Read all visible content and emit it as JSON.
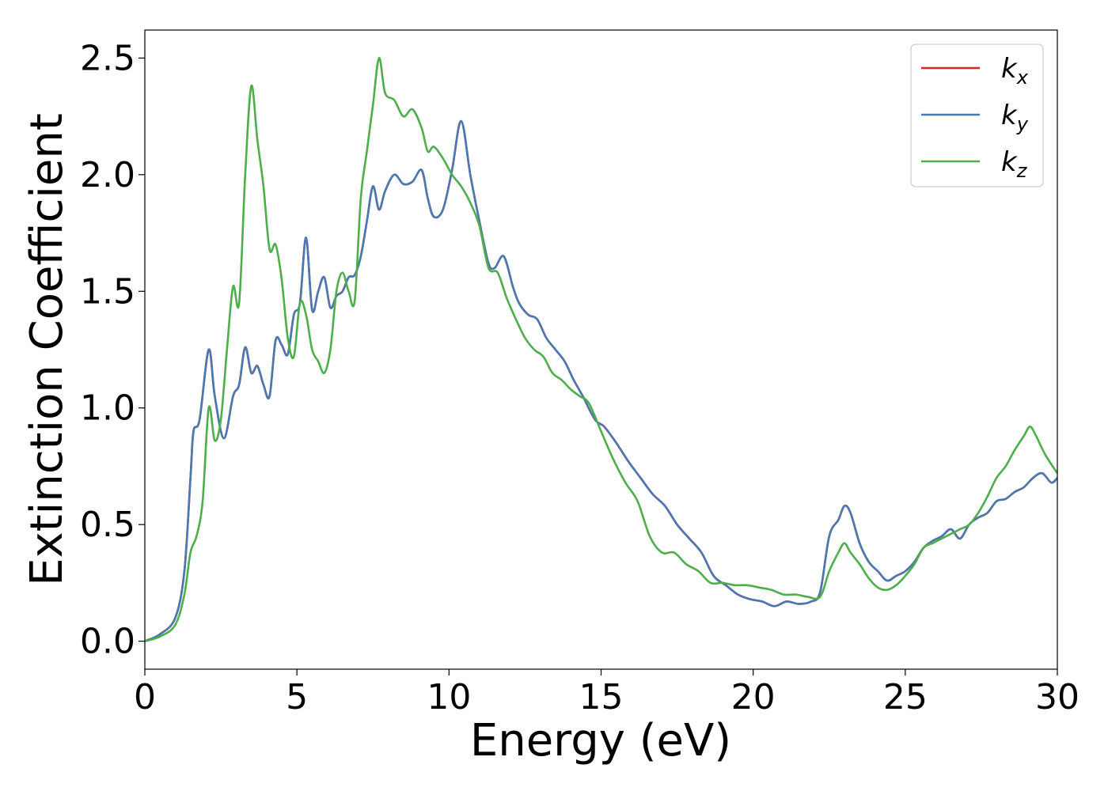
{
  "chart_data": {
    "type": "line",
    "title": "",
    "xlabel": "Energy (eV)",
    "ylabel": "Extinction Coefficient",
    "xlim": [
      0,
      30
    ],
    "ylim": [
      -0.12,
      2.62
    ],
    "xticks": [
      0,
      5,
      10,
      15,
      20,
      25,
      30
    ],
    "xtick_labels": [
      "0",
      "5",
      "10",
      "15",
      "20",
      "25",
      "30"
    ],
    "yticks": [
      0.0,
      0.5,
      1.0,
      1.5,
      2.0,
      2.5
    ],
    "ytick_labels": [
      "0.0",
      "0.5",
      "1.0",
      "1.5",
      "2.0",
      "2.5"
    ],
    "grid": false,
    "legend_position": "top-right",
    "series": [
      {
        "name": "k",
        "sub": "x",
        "color": "#d62728",
        "x": [
          0,
          0.5,
          1.0,
          1.3,
          1.5,
          1.6,
          1.8,
          2.1,
          2.3,
          2.6,
          2.9,
          3.1,
          3.3,
          3.5,
          3.7,
          3.9,
          4.1,
          4.3,
          4.5,
          4.7,
          4.9,
          5.1,
          5.3,
          5.5,
          5.7,
          5.9,
          6.1,
          6.3,
          6.5,
          6.7,
          6.9,
          7.1,
          7.3,
          7.5,
          7.7,
          7.9,
          8.2,
          8.5,
          8.8,
          9.1,
          9.3,
          9.5,
          9.8,
          10.1,
          10.4,
          10.7,
          11.0,
          11.3,
          11.5,
          11.8,
          12.1,
          12.3,
          12.6,
          12.9,
          13.2,
          13.5,
          13.8,
          14.1,
          14.4,
          14.8,
          15.1,
          15.5,
          15.9,
          16.3,
          16.7,
          17.1,
          17.5,
          17.9,
          18.3,
          18.7,
          19.1,
          19.5,
          19.9,
          20.3,
          20.7,
          21.1,
          21.5,
          21.9,
          22.2,
          22.5,
          22.8,
          23.0,
          23.2,
          23.5,
          23.8,
          24.1,
          24.4,
          24.7,
          25.0,
          25.3,
          25.6,
          25.9,
          26.2,
          26.5,
          26.8,
          27.1,
          27.4,
          27.7,
          28.0,
          28.3,
          28.6,
          28.9,
          29.2,
          29.5,
          29.8,
          30.0
        ],
        "y": [
          0,
          0.03,
          0.1,
          0.3,
          0.7,
          0.9,
          0.95,
          1.25,
          1.05,
          0.87,
          1.05,
          1.1,
          1.26,
          1.15,
          1.18,
          1.1,
          1.05,
          1.29,
          1.27,
          1.23,
          1.4,
          1.45,
          1.73,
          1.42,
          1.5,
          1.56,
          1.43,
          1.48,
          1.5,
          1.56,
          1.57,
          1.65,
          1.8,
          1.95,
          1.85,
          1.93,
          2.0,
          1.96,
          1.97,
          2.02,
          1.9,
          1.82,
          1.85,
          2.02,
          2.23,
          2.0,
          1.8,
          1.62,
          1.6,
          1.65,
          1.52,
          1.45,
          1.4,
          1.38,
          1.3,
          1.25,
          1.2,
          1.12,
          1.05,
          0.95,
          0.92,
          0.85,
          0.77,
          0.7,
          0.63,
          0.58,
          0.5,
          0.44,
          0.38,
          0.28,
          0.24,
          0.2,
          0.18,
          0.17,
          0.15,
          0.17,
          0.16,
          0.17,
          0.21,
          0.45,
          0.52,
          0.58,
          0.55,
          0.42,
          0.34,
          0.3,
          0.26,
          0.28,
          0.3,
          0.34,
          0.4,
          0.43,
          0.45,
          0.48,
          0.44,
          0.5,
          0.53,
          0.55,
          0.6,
          0.61,
          0.64,
          0.66,
          0.7,
          0.72,
          0.68,
          0.7
        ]
      },
      {
        "name": "k",
        "sub": "y",
        "color": "#4a78b0",
        "x": [
          0,
          0.5,
          1.0,
          1.3,
          1.5,
          1.6,
          1.8,
          2.1,
          2.3,
          2.6,
          2.9,
          3.1,
          3.3,
          3.5,
          3.7,
          3.9,
          4.1,
          4.3,
          4.5,
          4.7,
          4.9,
          5.1,
          5.3,
          5.5,
          5.7,
          5.9,
          6.1,
          6.3,
          6.5,
          6.7,
          6.9,
          7.1,
          7.3,
          7.5,
          7.7,
          7.9,
          8.2,
          8.5,
          8.8,
          9.1,
          9.3,
          9.5,
          9.8,
          10.1,
          10.4,
          10.7,
          11.0,
          11.3,
          11.5,
          11.8,
          12.1,
          12.3,
          12.6,
          12.9,
          13.2,
          13.5,
          13.8,
          14.1,
          14.4,
          14.8,
          15.1,
          15.5,
          15.9,
          16.3,
          16.7,
          17.1,
          17.5,
          17.9,
          18.3,
          18.7,
          19.1,
          19.5,
          19.9,
          20.3,
          20.7,
          21.1,
          21.5,
          21.9,
          22.2,
          22.5,
          22.8,
          23.0,
          23.2,
          23.5,
          23.8,
          24.1,
          24.4,
          24.7,
          25.0,
          25.3,
          25.6,
          25.9,
          26.2,
          26.5,
          26.8,
          27.1,
          27.4,
          27.7,
          28.0,
          28.3,
          28.6,
          28.9,
          29.2,
          29.5,
          29.8,
          30.0
        ],
        "y": [
          0,
          0.03,
          0.1,
          0.3,
          0.7,
          0.9,
          0.95,
          1.25,
          1.05,
          0.87,
          1.05,
          1.1,
          1.26,
          1.15,
          1.18,
          1.1,
          1.05,
          1.29,
          1.27,
          1.23,
          1.4,
          1.45,
          1.73,
          1.42,
          1.5,
          1.56,
          1.43,
          1.48,
          1.5,
          1.56,
          1.57,
          1.65,
          1.8,
          1.95,
          1.85,
          1.93,
          2.0,
          1.96,
          1.97,
          2.02,
          1.9,
          1.82,
          1.85,
          2.02,
          2.23,
          2.0,
          1.8,
          1.62,
          1.6,
          1.65,
          1.52,
          1.45,
          1.4,
          1.38,
          1.3,
          1.25,
          1.2,
          1.12,
          1.05,
          0.95,
          0.92,
          0.85,
          0.77,
          0.7,
          0.63,
          0.58,
          0.5,
          0.44,
          0.38,
          0.28,
          0.24,
          0.2,
          0.18,
          0.17,
          0.15,
          0.17,
          0.16,
          0.17,
          0.21,
          0.45,
          0.52,
          0.58,
          0.55,
          0.42,
          0.34,
          0.3,
          0.26,
          0.28,
          0.3,
          0.34,
          0.4,
          0.43,
          0.45,
          0.48,
          0.44,
          0.5,
          0.53,
          0.55,
          0.6,
          0.61,
          0.64,
          0.66,
          0.7,
          0.72,
          0.68,
          0.7
        ]
      },
      {
        "name": "k",
        "sub": "z",
        "color": "#4daf4a",
        "x": [
          0,
          0.5,
          1.0,
          1.3,
          1.5,
          1.7,
          1.9,
          2.1,
          2.3,
          2.5,
          2.7,
          2.9,
          3.1,
          3.3,
          3.5,
          3.7,
          3.9,
          4.1,
          4.3,
          4.5,
          4.7,
          4.9,
          5.1,
          5.3,
          5.5,
          5.7,
          5.9,
          6.1,
          6.3,
          6.5,
          6.7,
          6.9,
          7.1,
          7.3,
          7.5,
          7.7,
          7.9,
          8.2,
          8.5,
          8.8,
          9.1,
          9.3,
          9.5,
          9.8,
          10.1,
          10.4,
          10.7,
          11.0,
          11.3,
          11.6,
          11.9,
          12.2,
          12.5,
          12.8,
          13.1,
          13.4,
          13.7,
          14.0,
          14.3,
          14.6,
          15.0,
          15.4,
          15.8,
          16.2,
          16.6,
          17.0,
          17.4,
          17.8,
          18.2,
          18.6,
          19.0,
          19.4,
          19.8,
          20.2,
          20.6,
          21.0,
          21.4,
          21.8,
          22.2,
          22.5,
          22.8,
          23.0,
          23.2,
          23.5,
          23.8,
          24.1,
          24.4,
          24.7,
          25.0,
          25.3,
          25.6,
          25.9,
          26.2,
          26.5,
          26.8,
          27.1,
          27.4,
          27.7,
          28.0,
          28.3,
          28.6,
          28.9,
          29.1,
          29.3,
          29.6,
          30.0
        ],
        "y": [
          0,
          0.02,
          0.07,
          0.2,
          0.38,
          0.45,
          0.6,
          1.0,
          0.86,
          0.95,
          1.25,
          1.52,
          1.45,
          2.0,
          2.38,
          2.15,
          1.95,
          1.68,
          1.7,
          1.55,
          1.3,
          1.22,
          1.45,
          1.4,
          1.25,
          1.2,
          1.15,
          1.25,
          1.5,
          1.58,
          1.5,
          1.46,
          1.9,
          2.1,
          2.3,
          2.5,
          2.35,
          2.32,
          2.25,
          2.28,
          2.2,
          2.1,
          2.12,
          2.07,
          2.0,
          1.95,
          1.88,
          1.78,
          1.6,
          1.58,
          1.47,
          1.38,
          1.3,
          1.25,
          1.22,
          1.15,
          1.12,
          1.08,
          1.05,
          1.02,
          0.9,
          0.78,
          0.68,
          0.6,
          0.45,
          0.38,
          0.38,
          0.33,
          0.3,
          0.25,
          0.25,
          0.24,
          0.24,
          0.23,
          0.22,
          0.2,
          0.2,
          0.19,
          0.19,
          0.3,
          0.38,
          0.42,
          0.38,
          0.33,
          0.27,
          0.23,
          0.22,
          0.24,
          0.28,
          0.33,
          0.4,
          0.42,
          0.44,
          0.46,
          0.48,
          0.5,
          0.55,
          0.62,
          0.7,
          0.75,
          0.82,
          0.88,
          0.92,
          0.88,
          0.8,
          0.72
        ]
      }
    ]
  }
}
